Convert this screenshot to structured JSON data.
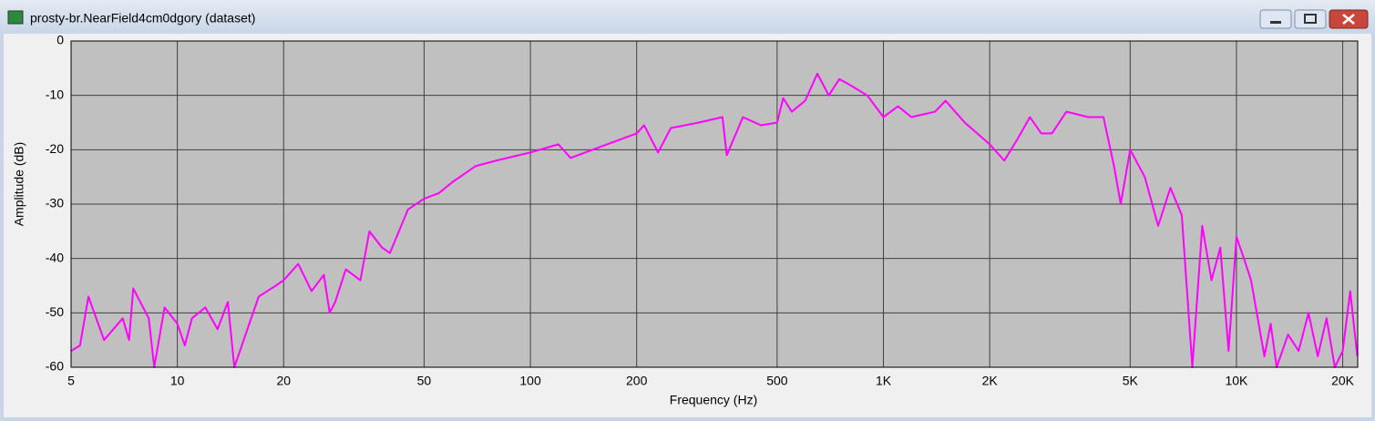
{
  "window": {
    "title": "prosty-br.NearField4cm0dgory (dataset)"
  },
  "chart_data": {
    "type": "line",
    "xlabel": "Frequency (Hz)",
    "ylabel": "Amplitude (dB)",
    "x_scale": "log",
    "grid": true,
    "color": "#ff00ff",
    "xlim": [
      5,
      22050
    ],
    "ylim": [
      -60,
      0
    ],
    "xticks": [
      5,
      10,
      20,
      50,
      100,
      200,
      500,
      {
        "value": 1000,
        "label": "1K"
      },
      {
        "value": 2000,
        "label": "2K"
      },
      {
        "value": 5000,
        "label": "5K"
      },
      {
        "value": 10000,
        "label": "10K"
      },
      {
        "value": 20000,
        "label": "20K"
      }
    ],
    "yticks": [
      0,
      -10,
      -20,
      -30,
      -40,
      -50,
      -60
    ],
    "x": [
      5,
      5.3,
      5.6,
      6.2,
      7,
      7.3,
      7.5,
      8.3,
      8.6,
      9.2,
      10,
      10.5,
      11,
      12,
      13,
      13.9,
      14.5,
      17,
      19,
      20,
      22,
      24,
      26,
      27,
      28,
      30,
      33,
      35,
      38,
      40,
      45,
      50,
      55,
      60,
      70,
      80,
      100,
      120,
      130,
      150,
      200,
      210,
      230,
      250,
      300,
      350,
      360,
      400,
      450,
      500,
      520,
      550,
      600,
      650,
      700,
      750,
      800,
      900,
      1000,
      1100,
      1200,
      1400,
      1500,
      1700,
      2000,
      2200,
      2400,
      2600,
      2800,
      3000,
      3300,
      3800,
      4200,
      4500,
      4700,
      5000,
      5500,
      6000,
      6500,
      7000,
      7500,
      8000,
      8500,
      9000,
      9500,
      10000,
      10500,
      11000,
      12000,
      12500,
      13000,
      14000,
      15000,
      16000,
      17000,
      18000,
      19000,
      20000,
      21000,
      22000
    ],
    "values": [
      -57,
      -56,
      -47,
      -55,
      -51,
      -55,
      -45.5,
      -51,
      -60,
      -49,
      -52,
      -56,
      -51,
      -49,
      -53,
      -48,
      -60,
      -47,
      -45,
      -44,
      -41,
      -46,
      -43,
      -50,
      -48,
      -42,
      -44,
      -35,
      -38,
      -39,
      -31,
      -29,
      -28,
      -26,
      -23,
      -22,
      -20.5,
      -19,
      -21.5,
      -20,
      -17,
      -15.5,
      -20.5,
      -16,
      -15,
      -14,
      -21,
      -14,
      -15.5,
      -15,
      -10.5,
      -13,
      -11,
      -6,
      -10,
      -7,
      -8,
      -10,
      -14,
      -12,
      -14,
      -13,
      -11,
      -15,
      -19,
      -22,
      -18,
      -14,
      -17,
      -17,
      -13,
      -14,
      -14,
      -23,
      -30,
      -20,
      -25,
      -34,
      -27,
      -32,
      -60,
      -34,
      -44,
      -38,
      -57,
      -36,
      -40,
      -44,
      -58,
      -52,
      -60,
      -54,
      -57,
      -50,
      -58,
      -51,
      -60,
      -57,
      -46,
      -58
    ]
  }
}
